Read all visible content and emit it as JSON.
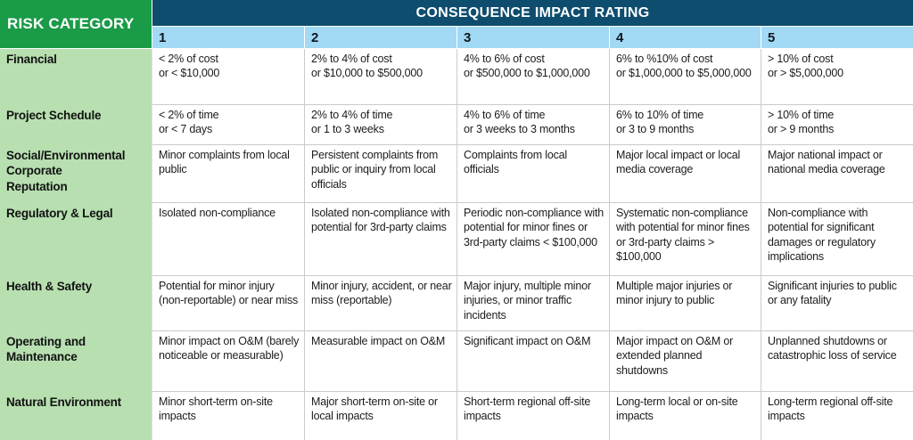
{
  "table": {
    "corner_header": "RISK CATEGORY",
    "main_header": "CONSEQUENCE IMPACT RATING",
    "rating_levels": [
      "1",
      "2",
      "3",
      "4",
      "5"
    ],
    "rows": [
      {
        "category": "Financial",
        "cells": [
          "< 2% of cost\nor < $10,000",
          "2% to 4% of cost\nor $10,000 to $500,000",
          "4% to 6% of cost\nor $500,000 to $1,000,000",
          "6% to %10% of cost\nor $1,000,000 to $5,000,000",
          "> 10% of cost\nor > $5,000,000"
        ]
      },
      {
        "category": "Project Schedule",
        "cells": [
          "< 2% of time\nor < 7 days",
          "2% to 4% of time\nor 1 to 3 weeks",
          "4% to 6% of time\nor 3 weeks to 3 months",
          "6% to 10% of time\nor 3 to 9 months",
          "> 10% of time\nor > 9 months"
        ]
      },
      {
        "category": "Social/Environmental\nCorporate\nReputation",
        "cells": [
          "Minor complaints from local public",
          "Persistent complaints from public or inquiry from local officials",
          "Complaints from local officials",
          "Major local impact or local media coverage",
          "Major national impact or national media coverage"
        ]
      },
      {
        "category": "Regulatory & Legal",
        "cells": [
          "Isolated non-compliance",
          "Isolated non-compliance with potential for 3rd-party claims",
          "Periodic non-compliance with potential for minor fines or 3rd-party claims < $100,000",
          "Systematic non-compliance with potential for minor fines or 3rd-party claims > $100,000",
          "Non-compliance with potential for significant damages or regulatory implications"
        ]
      },
      {
        "category": "Health & Safety",
        "cells": [
          "Potential for minor injury (non-reportable) or near miss",
          "Minor injury, accident, or near miss (reportable)",
          "Major injury, multiple minor injuries, or minor traffic incidents",
          "Multiple major injuries or minor injury to public",
          "Significant injuries to public or any fatality"
        ]
      },
      {
        "category": "Operating and\nMaintenance",
        "cells": [
          "Minor impact on O&M (barely noticeable or measurable)",
          "Measurable impact on O&M",
          "Significant impact on O&M",
          "Major impact on O&M or extended planned shutdowns",
          "Unplanned shutdowns or catastrophic loss of service"
        ]
      },
      {
        "category": "Natural Environment",
        "cells": [
          "Minor short-term on-site impacts",
          "Major short-term on-site or local impacts",
          "Short-term regional off-site impacts",
          "Long-term local or on-site impacts",
          "Long-term regional off-site impacts"
        ]
      }
    ],
    "colors": {
      "category_header_green": "#1a9b48",
      "category_cell_green": "#b7dfb0",
      "rating_header_navy": "#0e4d6e",
      "rating_level_blue": "#a2d9f4",
      "body_text": "#1c1c1c",
      "gridline": "#cbcbcb"
    }
  }
}
